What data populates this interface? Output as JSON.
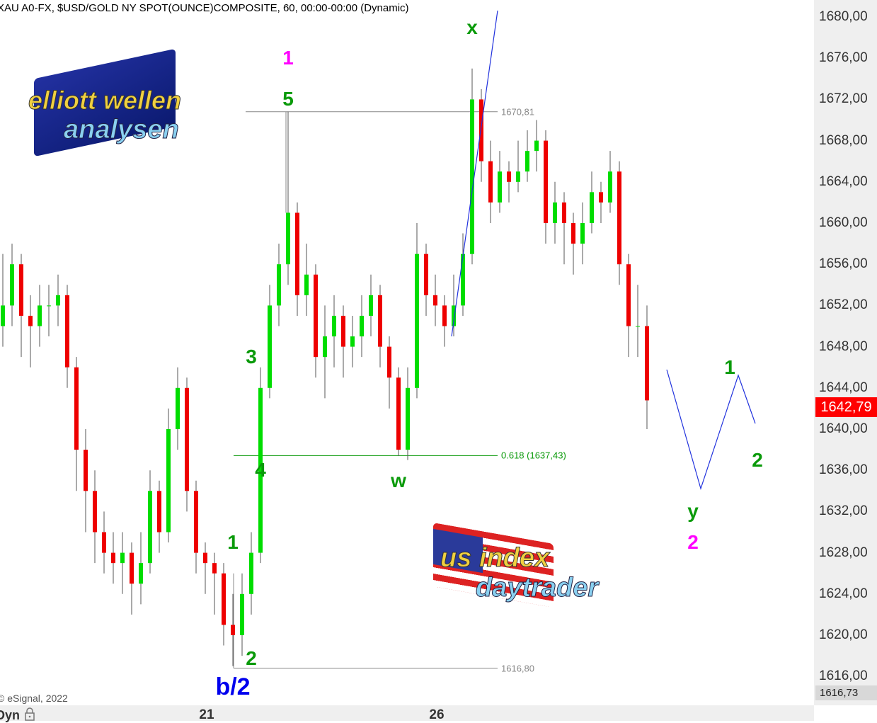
{
  "header": {
    "title": "XAU A0-FX, $USD/GOLD NY SPOT(OUNCE)COMPOSITE, 60, 00:00-00:00 (Dynamic)"
  },
  "footer": {
    "copyright": "© eSignal, 2022",
    "mode": "Dyn",
    "lock_icon": "lock-icon"
  },
  "logos": {
    "top": {
      "line1": "elliott wellen",
      "line2": "analysen"
    },
    "bottom": {
      "line1": "us index",
      "line2": "daytrader"
    }
  },
  "colors": {
    "up": "#00dd00",
    "down": "#ee0000",
    "wave_green": "#0a9a0a",
    "wave_magenta": "#ff00ff",
    "wave_blue": "#0000ee",
    "last_price_bg": "#ff0000"
  },
  "chart_data": {
    "type": "candlestick",
    "title": "XAU A0-FX, $USD/GOLD NY SPOT(OUNCE)COMPOSITE, 60, 00:00-00:00 (Dynamic)",
    "ylim": [
      1612,
      1682
    ],
    "yticks": [
      "1680,00",
      "1676,00",
      "1672,00",
      "1668,00",
      "1664,00",
      "1660,00",
      "1656,00",
      "1652,00",
      "1648,00",
      "1644,00",
      "1640,00",
      "1636,00",
      "1632,00",
      "1628,00",
      "1624,00",
      "1620,00",
      "1616,00"
    ],
    "ytick_values": [
      1680,
      1676,
      1672,
      1668,
      1664,
      1660,
      1656,
      1652,
      1648,
      1644,
      1640,
      1636,
      1632,
      1628,
      1624,
      1620,
      1616
    ],
    "xticks": [
      {
        "label": "21",
        "index": 22
      },
      {
        "label": "26",
        "index": 47
      }
    ],
    "last_price": "1642,79",
    "low_marker": "1616,73",
    "candles": [
      [
        1650,
        1657,
        1648,
        1652
      ],
      [
        1652,
        1658,
        1650,
        1656
      ],
      [
        1656,
        1657,
        1647,
        1651
      ],
      [
        1651,
        1653,
        1646,
        1650
      ],
      [
        1650,
        1654,
        1648,
        1652
      ],
      [
        1652,
        1654,
        1649,
        1652
      ],
      [
        1652,
        1655,
        1650,
        1653
      ],
      [
        1653,
        1654,
        1644,
        1646
      ],
      [
        1646,
        1647,
        1634,
        1638
      ],
      [
        1638,
        1640,
        1630,
        1634
      ],
      [
        1634,
        1636,
        1627,
        1630
      ],
      [
        1630,
        1632,
        1626,
        1628
      ],
      [
        1628,
        1630,
        1625,
        1627
      ],
      [
        1627,
        1630,
        1624,
        1628
      ],
      [
        1628,
        1629,
        1622,
        1625
      ],
      [
        1625,
        1630,
        1623,
        1627
      ],
      [
        1627,
        1636,
        1626,
        1634
      ],
      [
        1634,
        1635,
        1628,
        1630
      ],
      [
        1630,
        1642,
        1629,
        1640
      ],
      [
        1640,
        1646,
        1638,
        1644
      ],
      [
        1644,
        1645,
        1632,
        1634
      ],
      [
        1634,
        1635,
        1626,
        1628
      ],
      [
        1628,
        1629,
        1624,
        1627
      ],
      [
        1627,
        1628,
        1622,
        1626
      ],
      [
        1626,
        1627,
        1619,
        1621
      ],
      [
        1621,
        1624,
        1617,
        1620
      ],
      [
        1620,
        1626,
        1618,
        1624
      ],
      [
        1624,
        1630,
        1622,
        1628
      ],
      [
        1628,
        1646,
        1627,
        1644
      ],
      [
        1644,
        1654,
        1643,
        1652
      ],
      [
        1652,
        1658,
        1650,
        1656
      ],
      [
        1656,
        1670.81,
        1654,
        1661
      ],
      [
        1661,
        1662,
        1651,
        1653
      ],
      [
        1653,
        1658,
        1651,
        1655
      ],
      [
        1655,
        1656,
        1645,
        1647
      ],
      [
        1647,
        1652,
        1643,
        1649
      ],
      [
        1649,
        1653,
        1646,
        1651
      ],
      [
        1651,
        1652,
        1645,
        1648
      ],
      [
        1648,
        1651,
        1646,
        1649
      ],
      [
        1649,
        1653,
        1647,
        1651
      ],
      [
        1651,
        1655,
        1649,
        1653
      ],
      [
        1653,
        1654,
        1646,
        1648
      ],
      [
        1648,
        1649,
        1642,
        1645
      ],
      [
        1645,
        1646,
        1637.4,
        1638
      ],
      [
        1638,
        1646,
        1637,
        1644
      ],
      [
        1644,
        1660,
        1643,
        1657
      ],
      [
        1657,
        1658,
        1651,
        1653
      ],
      [
        1653,
        1655,
        1650,
        1652
      ],
      [
        1652,
        1653,
        1648,
        1650
      ],
      [
        1650,
        1655,
        1649,
        1652
      ],
      [
        1652,
        1659,
        1651,
        1657
      ],
      [
        1657,
        1675,
        1656,
        1672
      ],
      [
        1672,
        1673,
        1664,
        1666
      ],
      [
        1666,
        1668,
        1660,
        1662
      ],
      [
        1662,
        1667,
        1661,
        1665
      ],
      [
        1665,
        1666,
        1662,
        1664
      ],
      [
        1664,
        1668,
        1663,
        1665
      ],
      [
        1665,
        1669,
        1664,
        1667
      ],
      [
        1667,
        1670,
        1665,
        1668
      ],
      [
        1668,
        1669,
        1658,
        1660
      ],
      [
        1660,
        1664,
        1658,
        1662
      ],
      [
        1662,
        1663,
        1656,
        1660
      ],
      [
        1660,
        1661,
        1655,
        1658
      ],
      [
        1658,
        1662,
        1656,
        1660
      ],
      [
        1660,
        1665,
        1659,
        1663
      ],
      [
        1663,
        1664,
        1660,
        1662
      ],
      [
        1662,
        1667,
        1661,
        1665
      ],
      [
        1665,
        1666,
        1654,
        1656
      ],
      [
        1656,
        1657,
        1647,
        1650
      ],
      [
        1650,
        1654,
        1647,
        1650
      ],
      [
        1650,
        1652,
        1640,
        1642.79
      ]
    ],
    "levels": [
      {
        "label": "1670,81",
        "value": 1670.81
      },
      {
        "label": "0.618 (1637,43)",
        "value": 1637.43
      },
      {
        "label": "1616,80",
        "value": 1616.8
      }
    ],
    "wave_labels": [
      {
        "text": "1",
        "color": "magenta",
        "index": 31,
        "price": 1676
      },
      {
        "text": "5",
        "color": "green",
        "index": 31,
        "price": 1672
      },
      {
        "text": "3",
        "color": "green",
        "index": 27,
        "price": 1647
      },
      {
        "text": "4",
        "color": "green",
        "index": 28,
        "price": 1636
      },
      {
        "text": "1",
        "color": "green",
        "index": 25,
        "price": 1629
      },
      {
        "text": "2",
        "color": "green",
        "index": 27,
        "price": 1615
      },
      {
        "text": "b/2",
        "color": "blue",
        "index": 25,
        "price": 1611
      },
      {
        "text": "x",
        "color": "green",
        "index": 51,
        "price": 1679
      },
      {
        "text": "w",
        "color": "green",
        "index": 43,
        "price": 1635
      },
      {
        "text": "1",
        "color": "green",
        "index": 79,
        "price": 1646
      },
      {
        "text": "2",
        "color": "green",
        "index": 82,
        "price": 1637
      },
      {
        "text": "y",
        "color": "green",
        "index": 75,
        "price": 1632
      },
      {
        "text": "2",
        "color": "magenta",
        "index": 75,
        "price": 1629
      }
    ]
  }
}
